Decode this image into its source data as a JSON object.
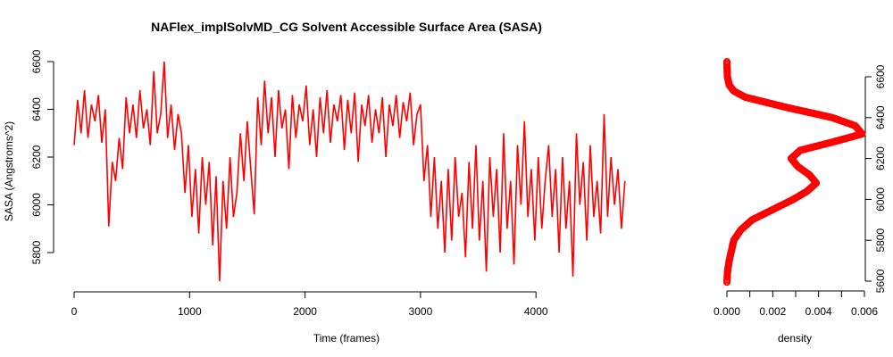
{
  "chart_data": [
    {
      "type": "line",
      "title": "NAFlex_implSolvMD_CG Solvent Accessible Surface Area (SASA)",
      "xlabel": "Time (frames)",
      "ylabel": "SASA (Angstroms^2)",
      "xlim": [
        0,
        4800
      ],
      "ylim": [
        5800,
        6600
      ],
      "xticks": [
        "0",
        "1000",
        "2000",
        "3000",
        "4000"
      ],
      "yticks": [
        "5800",
        "6000",
        "6200",
        "6400",
        "6600"
      ],
      "color": "#ff0000",
      "frame_step": 30,
      "values": [
        6250,
        6440,
        6300,
        6480,
        6280,
        6420,
        6350,
        6460,
        6260,
        6400,
        5910,
        6180,
        6100,
        6280,
        6150,
        6450,
        6300,
        6420,
        6280,
        6480,
        6320,
        6400,
        6250,
        6560,
        6300,
        6380,
        6600,
        6280,
        6420,
        6230,
        6380,
        6300,
        6050,
        6250,
        5950,
        6150,
        5880,
        6200,
        6000,
        6180,
        5830,
        6120,
        5680,
        6100,
        5900,
        6200,
        5950,
        6050,
        6300,
        6100,
        6350,
        6150,
        5960,
        6450,
        6250,
        6520,
        6300,
        6450,
        6200,
        6480,
        6320,
        6400,
        6150,
        6460,
        6280,
        6420,
        6350,
        6500,
        6250,
        6400,
        6200,
        6450,
        6300,
        6480,
        6260,
        6420,
        6350,
        6460,
        6230,
        6440,
        6300,
        6470,
        6180,
        6420,
        6330,
        6460,
        6260,
        6400,
        6300,
        6450,
        6200,
        6420,
        6330,
        6460,
        6280,
        6430,
        6350,
        6470,
        6250,
        6380,
        6420,
        6100,
        6250,
        5950,
        6200,
        5900,
        6100,
        5800,
        6150,
        5850,
        6200,
        5950,
        6050,
        5780,
        6180,
        5900,
        6250,
        5850,
        6100,
        5720,
        6200,
        5950,
        6150,
        5800,
        6300,
        5900,
        6100,
        5750,
        6250,
        6000,
        6350,
        5950,
        6150,
        5850,
        6200,
        5900,
        6100,
        6250,
        5950,
        6150,
        5800,
        6200,
        5900,
        6100,
        5700,
        6300,
        6000,
        6180,
        5850,
        6250,
        5950,
        6100,
        5880,
        6380,
        5950,
        6200,
        6000,
        6150,
        5900,
        6100
      ]
    },
    {
      "type": "line",
      "xlabel": "density",
      "xlim": [
        0,
        0.006
      ],
      "ylim": [
        5600,
        6600
      ],
      "xticks": [
        "0.000",
        "0.002",
        "0.004",
        "0.006"
      ],
      "yticks": [
        "5600",
        "5800",
        "6000",
        "6200",
        "6400",
        "6600"
      ],
      "color": "#ff0000",
      "points": [
        [
          5595,
          0
        ],
        [
          5650,
          3e-05
        ],
        [
          5700,
          0.0001
        ],
        [
          5750,
          0.0002
        ],
        [
          5800,
          0.0003
        ],
        [
          5850,
          0.0006
        ],
        [
          5900,
          0.0011
        ],
        [
          5950,
          0.002
        ],
        [
          6000,
          0.0029
        ],
        [
          6040,
          0.0035
        ],
        [
          6080,
          0.0039
        ],
        [
          6120,
          0.0036
        ],
        [
          6160,
          0.0031
        ],
        [
          6200,
          0.0028
        ],
        [
          6240,
          0.0032
        ],
        [
          6280,
          0.0046
        ],
        [
          6320,
          0.0059
        ],
        [
          6360,
          0.0056
        ],
        [
          6400,
          0.0046
        ],
        [
          6450,
          0.0026
        ],
        [
          6500,
          0.0008
        ],
        [
          6530,
          0.0003
        ],
        [
          6560,
          0.0001
        ],
        [
          6600,
          2e-05
        ],
        [
          6680,
          0
        ]
      ]
    }
  ]
}
